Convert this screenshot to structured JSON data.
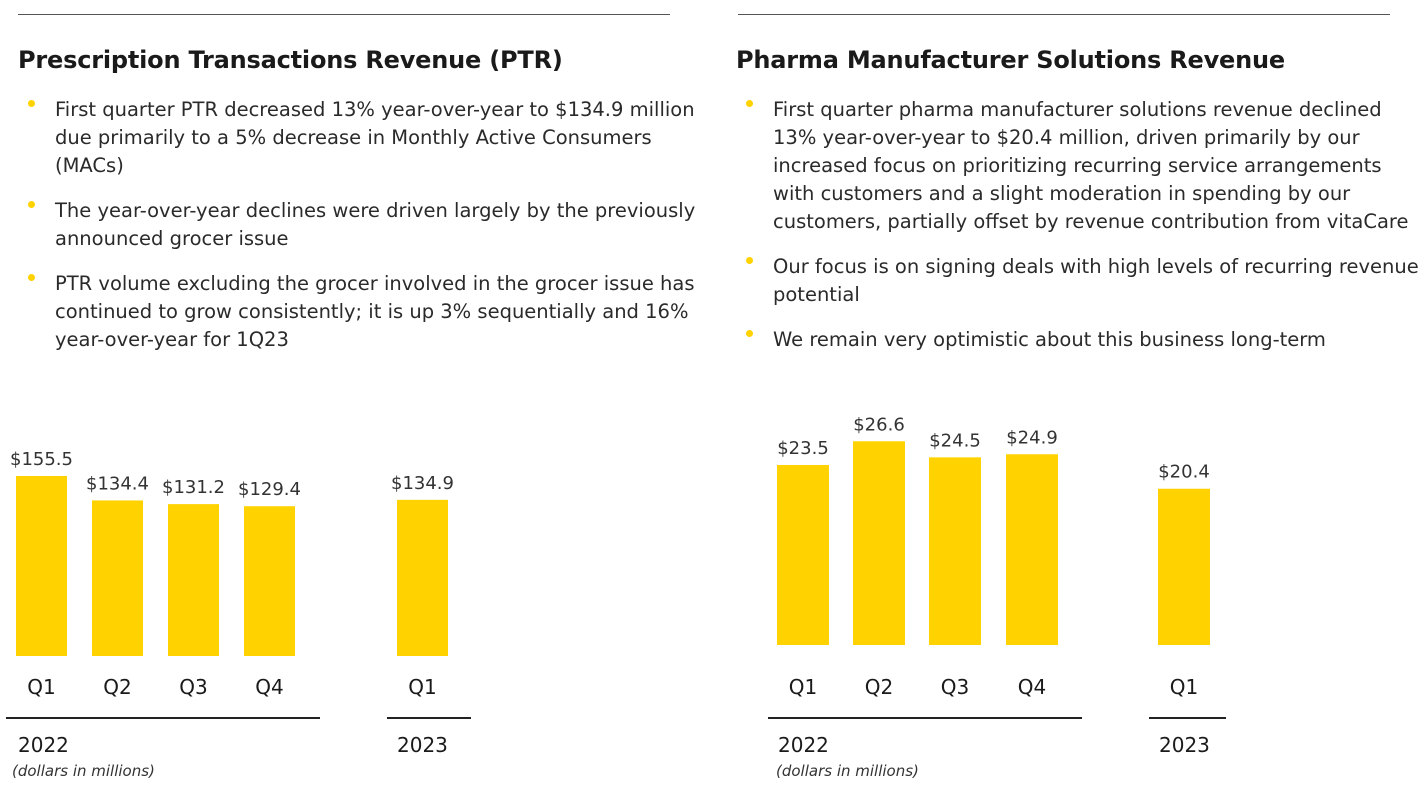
{
  "color": {
    "bar": "#FFD200",
    "bullet": "#FFD200",
    "text": "#1f1f1f"
  },
  "panels": [
    {
      "title": "Prescription Transactions Revenue (PTR)",
      "bullets": [
        "First quarter PTR decreased 13% year-over-year to $134.9 million due primarily to a 5% decrease in Monthly Active Consumers (MACs)",
        "The year-over-year declines were driven largely by the previously announced grocer issue",
        "PTR volume excluding the grocer involved in the grocer issue has continued to grow consistently; it is up 3% sequentially and 16% year-over-year for 1Q23"
      ],
      "footnote": "(dollars in millions)"
    },
    {
      "title": "Pharma Manufacturer Solutions Revenue",
      "bullets": [
        "First quarter pharma manufacturer solutions revenue declined 13% year-over-year to $20.4 million, driven primarily by our increased focus on prioritizing recurring service arrangements with customers and a slight moderation in spending by our customers, partially offset by revenue contribution from vitaCare",
        "Our focus is on signing deals with high levels of recurring revenue potential",
        "We remain very optimistic about this business long-term"
      ],
      "footnote": "(dollars in millions)"
    }
  ],
  "chart_data": [
    {
      "type": "bar",
      "title": "",
      "categories": [
        "Q1",
        "Q2",
        "Q3",
        "Q4",
        "Q1"
      ],
      "groups": [
        {
          "label": "2022",
          "categories": [
            "Q1",
            "Q2",
            "Q3",
            "Q4"
          ]
        },
        {
          "label": "2023",
          "categories": [
            "Q1"
          ]
        }
      ],
      "values": [
        155.5,
        134.4,
        131.2,
        129.4,
        134.9
      ],
      "data_labels": [
        "$155.5",
        "$134.4",
        "$131.2",
        "$129.4",
        "$134.9"
      ],
      "unit": "dollars in millions",
      "grid": false
    },
    {
      "type": "bar",
      "title": "",
      "categories": [
        "Q1",
        "Q2",
        "Q3",
        "Q4",
        "Q1"
      ],
      "groups": [
        {
          "label": "2022",
          "categories": [
            "Q1",
            "Q2",
            "Q3",
            "Q4"
          ]
        },
        {
          "label": "2023",
          "categories": [
            "Q1"
          ]
        }
      ],
      "values": [
        23.5,
        26.6,
        24.5,
        24.9,
        20.4
      ],
      "data_labels": [
        "$23.5",
        "$26.6",
        "$24.5",
        "$24.9",
        "$20.4"
      ],
      "unit": "dollars in millions",
      "grid": false
    }
  ]
}
